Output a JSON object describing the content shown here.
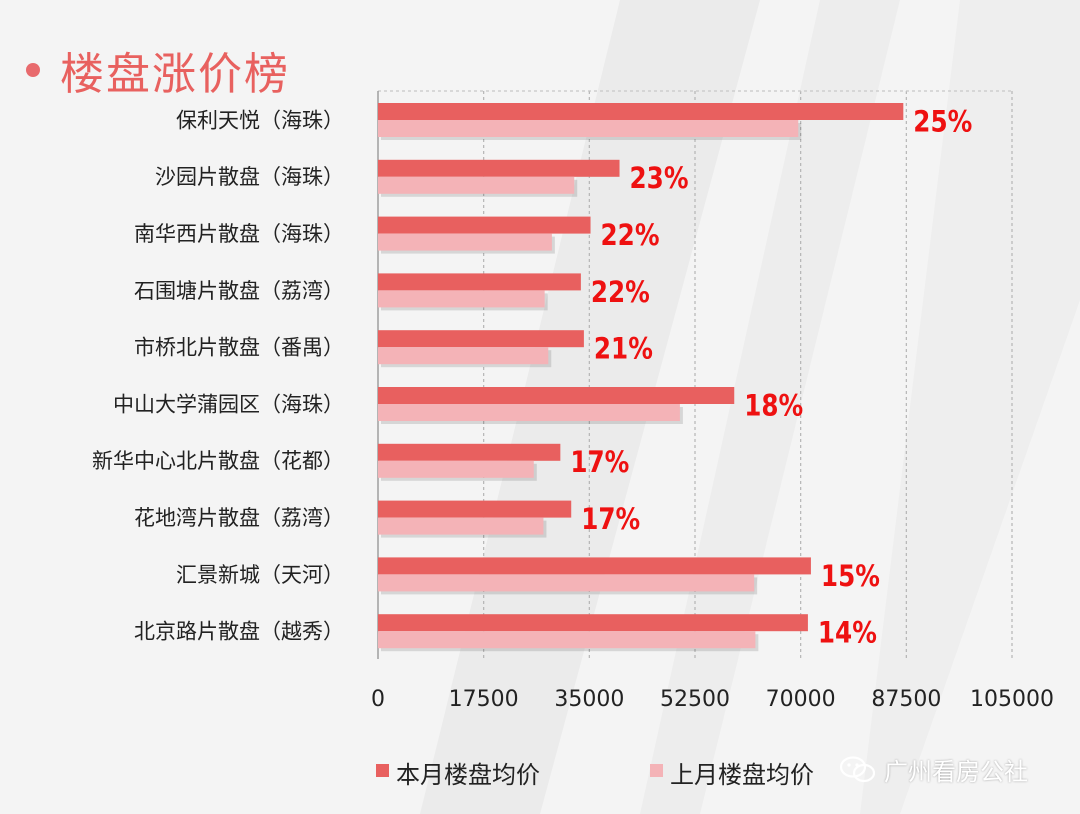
{
  "page": {
    "title": "楼盘涨价榜",
    "watermark": "广州看房公社"
  },
  "colors": {
    "current": "#e8605f",
    "previous": "#f4b3b7",
    "pct": "#ee1111",
    "title": "#e8615f"
  },
  "chart_data": {
    "type": "bar",
    "orientation": "horizontal",
    "title": "",
    "xlabel": "",
    "ylabel": "",
    "categories": [
      "保利天悦（海珠）",
      "沙园片散盘（海珠）",
      "南华西片散盘（海珠）",
      "石围塘片散盘（荔湾）",
      "市桥北片散盘（番禺）",
      "中山大学蒲园区（海珠）",
      "新华中心北片散盘（花都）",
      "花地湾片散盘（荔湾）",
      "汇景新城（天河）",
      "北京路片散盘（越秀）"
    ],
    "series": [
      {
        "name": "本月楼盘均价",
        "values": [
          87000,
          40000,
          35200,
          33600,
          34100,
          59000,
          30200,
          32000,
          71700,
          71200
        ]
      },
      {
        "name": "上月楼盘均价",
        "values": [
          69600,
          32500,
          28800,
          27600,
          28200,
          50000,
          25800,
          27400,
          62300,
          62500
        ]
      }
    ],
    "percent_labels": [
      "25%",
      "23%",
      "22%",
      "22%",
      "21%",
      "18%",
      "17%",
      "17%",
      "15%",
      "14%"
    ],
    "xlim": [
      0,
      105000
    ],
    "xticks": [
      "0",
      "17500",
      "35000",
      "52500",
      "70000",
      "87500",
      "105000"
    ],
    "grid": true,
    "legend_position": "bottom"
  }
}
